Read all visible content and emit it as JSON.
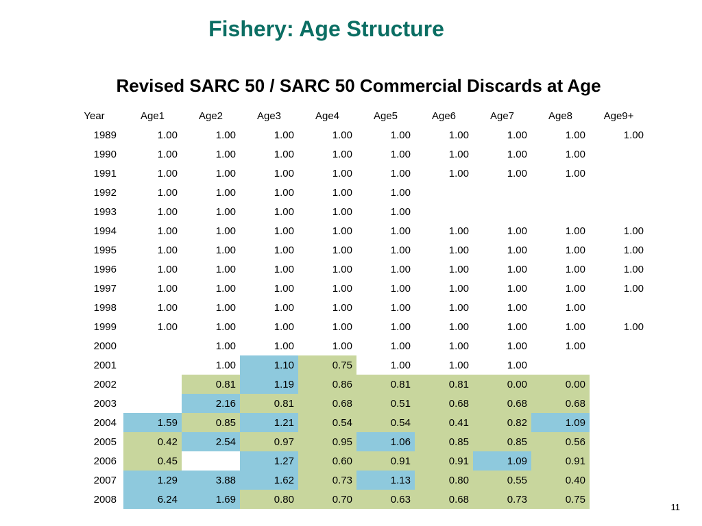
{
  "slide": {
    "title": "Fishery: Age Structure",
    "subtitle": "Revised SARC 50 / SARC 50 Commercial Discards at Age",
    "page_number": "11"
  },
  "colors": {
    "green": "#c8d69d",
    "blue": "#8ec9dd",
    "title": "#0b6e63"
  },
  "table": {
    "headers": [
      "Year",
      "Age1",
      "Age2",
      "Age3",
      "Age4",
      "Age5",
      "Age6",
      "Age7",
      "Age8",
      "Age9+"
    ],
    "rows": [
      {
        "cells": [
          "1989",
          "1.00",
          "1.00",
          "1.00",
          "1.00",
          "1.00",
          "1.00",
          "1.00",
          "1.00",
          "1.00"
        ],
        "fills": [
          "",
          "",
          "",
          "",
          "",
          "",
          "",
          "",
          "",
          ""
        ]
      },
      {
        "cells": [
          "1990",
          "1.00",
          "1.00",
          "1.00",
          "1.00",
          "1.00",
          "1.00",
          "1.00",
          "1.00",
          ""
        ],
        "fills": [
          "",
          "",
          "",
          "",
          "",
          "",
          "",
          "",
          "",
          ""
        ]
      },
      {
        "cells": [
          "1991",
          "1.00",
          "1.00",
          "1.00",
          "1.00",
          "1.00",
          "1.00",
          "1.00",
          "1.00",
          ""
        ],
        "fills": [
          "",
          "",
          "",
          "",
          "",
          "",
          "",
          "",
          "",
          ""
        ]
      },
      {
        "cells": [
          "1992",
          "1.00",
          "1.00",
          "1.00",
          "1.00",
          "1.00",
          "",
          "",
          "",
          ""
        ],
        "fills": [
          "",
          "",
          "",
          "",
          "",
          "",
          "",
          "",
          "",
          ""
        ]
      },
      {
        "cells": [
          "1993",
          "1.00",
          "1.00",
          "1.00",
          "1.00",
          "1.00",
          "",
          "",
          "",
          ""
        ],
        "fills": [
          "",
          "",
          "",
          "",
          "",
          "",
          "",
          "",
          "",
          ""
        ]
      },
      {
        "cells": [
          "1994",
          "1.00",
          "1.00",
          "1.00",
          "1.00",
          "1.00",
          "1.00",
          "1.00",
          "1.00",
          "1.00"
        ],
        "fills": [
          "",
          "",
          "",
          "",
          "",
          "",
          "",
          "",
          "",
          ""
        ]
      },
      {
        "cells": [
          "1995",
          "1.00",
          "1.00",
          "1.00",
          "1.00",
          "1.00",
          "1.00",
          "1.00",
          "1.00",
          "1.00"
        ],
        "fills": [
          "",
          "",
          "",
          "",
          "",
          "",
          "",
          "",
          "",
          ""
        ]
      },
      {
        "cells": [
          "1996",
          "1.00",
          "1.00",
          "1.00",
          "1.00",
          "1.00",
          "1.00",
          "1.00",
          "1.00",
          "1.00"
        ],
        "fills": [
          "",
          "",
          "",
          "",
          "",
          "",
          "",
          "",
          "",
          ""
        ]
      },
      {
        "cells": [
          "1997",
          "1.00",
          "1.00",
          "1.00",
          "1.00",
          "1.00",
          "1.00",
          "1.00",
          "1.00",
          "1.00"
        ],
        "fills": [
          "",
          "",
          "",
          "",
          "",
          "",
          "",
          "",
          "",
          ""
        ]
      },
      {
        "cells": [
          "1998",
          "1.00",
          "1.00",
          "1.00",
          "1.00",
          "1.00",
          "1.00",
          "1.00",
          "1.00",
          ""
        ],
        "fills": [
          "",
          "",
          "",
          "",
          "",
          "",
          "",
          "",
          "",
          ""
        ]
      },
      {
        "cells": [
          "1999",
          "1.00",
          "1.00",
          "1.00",
          "1.00",
          "1.00",
          "1.00",
          "1.00",
          "1.00",
          "1.00"
        ],
        "fills": [
          "",
          "",
          "",
          "",
          "",
          "",
          "",
          "",
          "",
          ""
        ]
      },
      {
        "cells": [
          "2000",
          "",
          "1.00",
          "1.00",
          "1.00",
          "1.00",
          "1.00",
          "1.00",
          "1.00",
          ""
        ],
        "fills": [
          "",
          "",
          "",
          "",
          "",
          "",
          "",
          "",
          "",
          ""
        ]
      },
      {
        "cells": [
          "2001",
          "",
          "1.00",
          "1.10",
          "0.75",
          "1.00",
          "1.00",
          "1.00",
          "",
          ""
        ],
        "fills": [
          "",
          "",
          "",
          "b",
          "g",
          "",
          "",
          "",
          "",
          ""
        ]
      },
      {
        "cells": [
          "2002",
          "",
          "0.81",
          "1.19",
          "0.86",
          "0.81",
          "0.81",
          "0.00",
          "0.00",
          ""
        ],
        "fills": [
          "",
          "",
          "g",
          "b",
          "g",
          "g",
          "g",
          "g",
          "g",
          ""
        ]
      },
      {
        "cells": [
          "2003",
          "",
          "2.16",
          "0.81",
          "0.68",
          "0.51",
          "0.68",
          "0.68",
          "0.68",
          ""
        ],
        "fills": [
          "",
          "",
          "b",
          "g",
          "g",
          "g",
          "g",
          "g",
          "g",
          ""
        ]
      },
      {
        "cells": [
          "2004",
          "1.59",
          "0.85",
          "1.21",
          "0.54",
          "0.54",
          "0.41",
          "0.82",
          "1.09",
          ""
        ],
        "fills": [
          "",
          "b",
          "g",
          "b",
          "g",
          "g",
          "g",
          "g",
          "b",
          ""
        ]
      },
      {
        "cells": [
          "2005",
          "0.42",
          "2.54",
          "0.97",
          "0.95",
          "1.06",
          "0.85",
          "0.85",
          "0.56",
          ""
        ],
        "fills": [
          "",
          "g",
          "b",
          "g",
          "g",
          "b",
          "g",
          "g",
          "g",
          ""
        ]
      },
      {
        "cells": [
          "2006",
          "0.45",
          "",
          "1.27",
          "0.60",
          "0.91",
          "0.91",
          "1.09",
          "0.91",
          ""
        ],
        "fills": [
          "",
          "g",
          "",
          "b",
          "g",
          "g",
          "g",
          "b",
          "g",
          ""
        ]
      },
      {
        "cells": [
          "2007",
          "1.29",
          "3.88",
          "1.62",
          "0.73",
          "1.13",
          "0.80",
          "0.55",
          "0.40",
          ""
        ],
        "fills": [
          "",
          "b",
          "b",
          "b",
          "g",
          "b",
          "g",
          "g",
          "g",
          ""
        ]
      },
      {
        "cells": [
          "2008",
          "6.24",
          "1.69",
          "0.80",
          "0.70",
          "0.63",
          "0.68",
          "0.73",
          "0.75",
          ""
        ],
        "fills": [
          "",
          "b",
          "b",
          "g",
          "g",
          "g",
          "g",
          "g",
          "g",
          ""
        ]
      }
    ]
  }
}
